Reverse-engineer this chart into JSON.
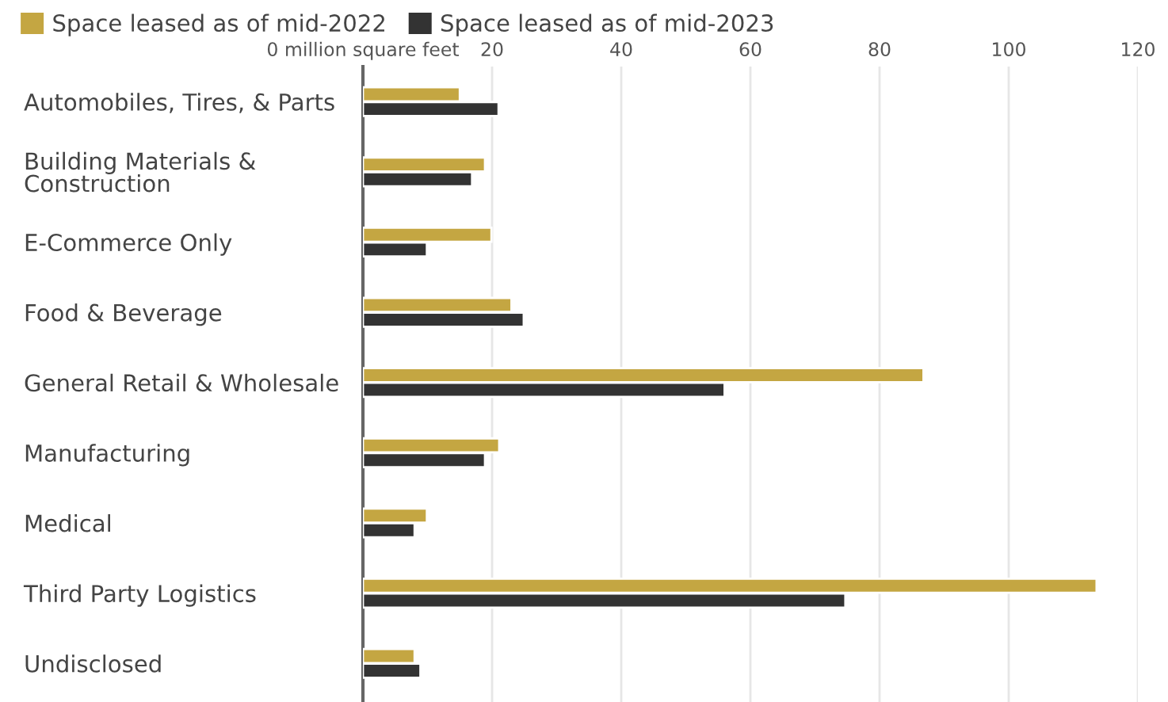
{
  "chart_data": {
    "type": "bar",
    "orientation": "horizontal",
    "categories": [
      "Automobiles, Tires, & Parts",
      "Building Materials &\nConstruction",
      "E-Commerce Only",
      "Food & Beverage",
      "General Retail & Wholesale",
      "Manufacturing",
      "Medical",
      "Third Party Logistics",
      "Undisclosed"
    ],
    "series": [
      {
        "name": "Space leased as of mid-2022",
        "color": "#c4a642",
        "values": [
          15.0,
          18.9,
          19.9,
          23.0,
          86.8,
          21.1,
          9.9,
          113.6,
          8.0
        ]
      },
      {
        "name": "Space leased as of mid-2023",
        "color": "#333333",
        "values": [
          21.0,
          16.9,
          9.9,
          24.9,
          56.0,
          18.9,
          8.0,
          74.7,
          8.9
        ]
      }
    ],
    "xlim": [
      0,
      120
    ],
    "xticks": [
      {
        "value": 0,
        "label": "0 million square feet"
      },
      20,
      40,
      60,
      80,
      100,
      120
    ],
    "grid": "x",
    "legend": "top left"
  }
}
